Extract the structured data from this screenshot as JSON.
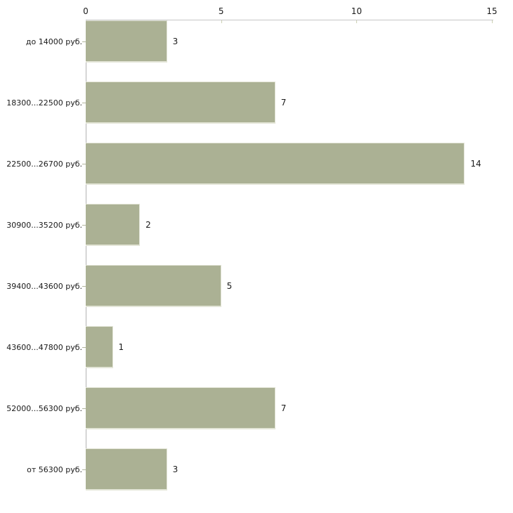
{
  "chart_data": {
    "type": "bar",
    "orientation": "horizontal",
    "title": "",
    "xlabel": "",
    "ylabel": "",
    "categories": [
      "до 14000 руб.",
      "18300...22500 руб.",
      "22500...26700 руб.",
      "30900...35200 руб.",
      "39400...43600 руб.",
      "43600...47800 руб.",
      "52000...56300 руб.",
      "от 56300 руб."
    ],
    "values": [
      3,
      7,
      14,
      2,
      5,
      1,
      7,
      3
    ],
    "x_axis": {
      "position": "top",
      "min": 0,
      "max": 15,
      "ticks": [
        {
          "label": "0",
          "value": 0
        },
        {
          "label": "5",
          "value": 5
        },
        {
          "label": "10",
          "value": 10
        },
        {
          "label": "15",
          "value": 15
        }
      ]
    },
    "grid": "off",
    "legend": "none",
    "colors": {
      "bar_fill": "#abb194",
      "bar_edge": "#e3e5d7",
      "x_axis_line": "#c6c6c6",
      "y_axis_line": "#b3b3b3",
      "x_tick_mark": "#ccd0b2",
      "category_tick_mark": "#b0b49c",
      "text": "#1a1a1a",
      "background": "#ffffff"
    }
  }
}
